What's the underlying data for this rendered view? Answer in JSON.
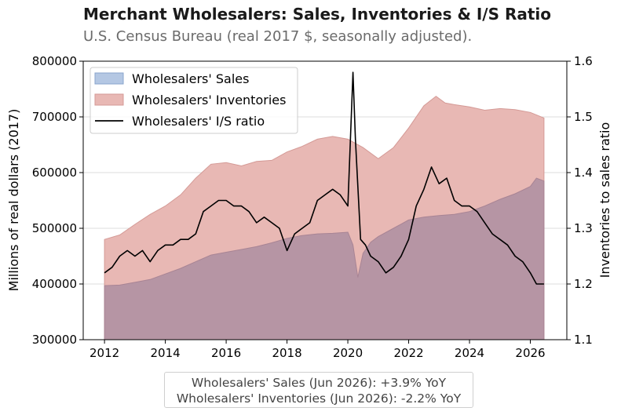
{
  "title": "Merchant Wholesalers: Sales, Inventories & I/S Ratio",
  "subtitle": "U.S. Census Bureau (real 2017 $, seasonally adjusted).",
  "footer": {
    "line1": "Wholesalers' Sales (Jun 2026): +3.9% YoY",
    "line2": "Wholesalers' Inventories (Jun 2026): -2.2% YoY"
  },
  "colors": {
    "sales_fill": "#b4c7e3",
    "inventories_fill": "#e8b8b4",
    "overlap_fill": "#b695a4",
    "inventories_edge": "#d49a96",
    "ratio_line": "#000000"
  },
  "chart_data": {
    "type": "area",
    "x_ticks": [
      "2012",
      "2014",
      "2016",
      "2018",
      "2020",
      "2022",
      "2024",
      "2026"
    ],
    "xlim": [
      2011.3,
      2027.2
    ],
    "y_left": {
      "label": "Millions of real dollars (2017)",
      "lim": [
        300000,
        800000
      ],
      "ticks": [
        "300000",
        "400000",
        "500000",
        "600000",
        "700000",
        "800000"
      ]
    },
    "y_right": {
      "label": "Inventories to sales ratio",
      "lim": [
        1.1,
        1.6
      ],
      "ticks": [
        "1.1",
        "1.2",
        "1.3",
        "1.4",
        "1.5",
        "1.6"
      ]
    },
    "grid": "horizontal",
    "legend_position": "top-left",
    "series": [
      {
        "name": "Wholesalers' Sales",
        "kind": "area",
        "axis": "left",
        "x": [
          2012.0,
          2012.5,
          2013.0,
          2013.5,
          2014.0,
          2014.5,
          2015.0,
          2015.5,
          2016.0,
          2016.5,
          2017.0,
          2017.5,
          2018.0,
          2018.5,
          2019.0,
          2019.5,
          2020.0,
          2020.17,
          2020.33,
          2020.5,
          2020.75,
          2021.0,
          2021.5,
          2022.0,
          2022.5,
          2023.0,
          2023.5,
          2024.0,
          2024.5,
          2025.0,
          2025.5,
          2026.0,
          2026.2,
          2026.45
        ],
        "y": [
          397000,
          398000,
          403000,
          408000,
          418000,
          428000,
          440000,
          452000,
          457000,
          462000,
          467000,
          474000,
          482000,
          487000,
          490000,
          491000,
          493000,
          470000,
          412000,
          455000,
          475000,
          485000,
          500000,
          515000,
          520000,
          523000,
          525000,
          530000,
          540000,
          552000,
          562000,
          575000,
          590000,
          585000
        ]
      },
      {
        "name": "Wholesalers' Inventories",
        "kind": "area",
        "axis": "left",
        "x": [
          2012.0,
          2012.5,
          2013.0,
          2013.5,
          2014.0,
          2014.5,
          2015.0,
          2015.5,
          2016.0,
          2016.5,
          2017.0,
          2017.5,
          2018.0,
          2018.5,
          2019.0,
          2019.5,
          2020.0,
          2020.5,
          2021.0,
          2021.5,
          2022.0,
          2022.5,
          2022.9,
          2023.2,
          2023.5,
          2024.0,
          2024.5,
          2025.0,
          2025.5,
          2026.0,
          2026.45
        ],
        "y": [
          480000,
          488000,
          507000,
          525000,
          540000,
          560000,
          590000,
          615000,
          618000,
          612000,
          620000,
          622000,
          637000,
          647000,
          660000,
          665000,
          660000,
          645000,
          625000,
          645000,
          680000,
          720000,
          737000,
          725000,
          722000,
          718000,
          712000,
          715000,
          713000,
          708000,
          698000
        ]
      },
      {
        "name": "Wholesalers' I/S ratio",
        "kind": "line",
        "axis": "right",
        "x": [
          2012.0,
          2012.25,
          2012.5,
          2012.75,
          2013.0,
          2013.25,
          2013.5,
          2013.75,
          2014.0,
          2014.25,
          2014.5,
          2014.75,
          2015.0,
          2015.25,
          2015.5,
          2015.75,
          2016.0,
          2016.25,
          2016.5,
          2016.75,
          2017.0,
          2017.25,
          2017.5,
          2017.75,
          2018.0,
          2018.25,
          2018.5,
          2018.75,
          2019.0,
          2019.25,
          2019.5,
          2019.75,
          2020.0,
          2020.17,
          2020.25,
          2020.42,
          2020.58,
          2020.75,
          2021.0,
          2021.25,
          2021.5,
          2021.75,
          2022.0,
          2022.25,
          2022.5,
          2022.75,
          2023.0,
          2023.25,
          2023.5,
          2023.75,
          2024.0,
          2024.25,
          2024.5,
          2024.75,
          2025.0,
          2025.25,
          2025.5,
          2025.75,
          2026.0,
          2026.2,
          2026.45
        ],
        "y": [
          1.22,
          1.23,
          1.25,
          1.26,
          1.25,
          1.26,
          1.24,
          1.26,
          1.27,
          1.27,
          1.28,
          1.28,
          1.29,
          1.33,
          1.34,
          1.35,
          1.35,
          1.34,
          1.34,
          1.33,
          1.31,
          1.32,
          1.31,
          1.3,
          1.26,
          1.29,
          1.3,
          1.31,
          1.35,
          1.36,
          1.37,
          1.36,
          1.34,
          1.58,
          1.46,
          1.28,
          1.27,
          1.25,
          1.24,
          1.22,
          1.23,
          1.25,
          1.28,
          1.34,
          1.37,
          1.41,
          1.38,
          1.39,
          1.35,
          1.34,
          1.34,
          1.33,
          1.31,
          1.29,
          1.28,
          1.27,
          1.25,
          1.24,
          1.22,
          1.2,
          1.2
        ]
      }
    ]
  }
}
